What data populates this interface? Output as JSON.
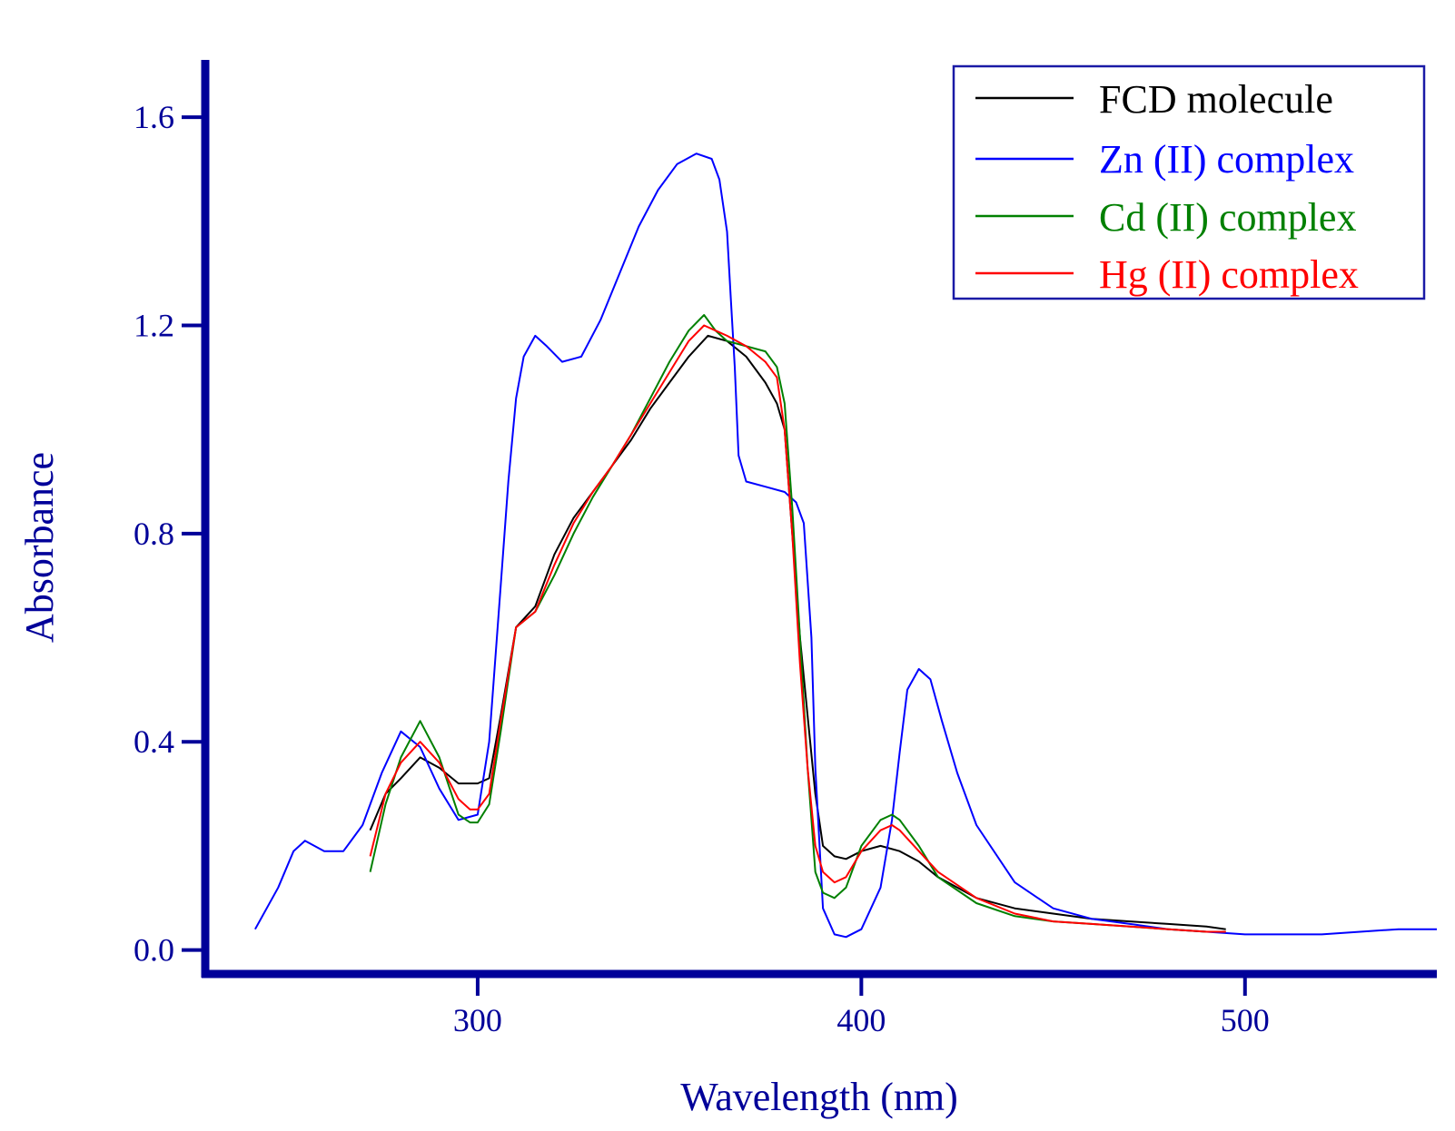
{
  "colors": {
    "axis": "#000099",
    "legend_border": "#1a1aa6"
  },
  "chart_data": {
    "type": "line",
    "title": "",
    "xlabel": "Wavelength (nm)",
    "ylabel": "Absorbance",
    "xlim": [
      229,
      550
    ],
    "ylim": [
      -0.046,
      1.71
    ],
    "xticks": [
      300,
      400,
      500
    ],
    "xtick_labels": [
      "300",
      "400",
      "500"
    ],
    "yticks": [
      0.0,
      0.4,
      0.8,
      1.2,
      1.6
    ],
    "ytick_labels": [
      "0.0",
      "0.4",
      "0.8",
      "1.2",
      "1.6"
    ],
    "grid": false,
    "legend_position": "top-right",
    "series": [
      {
        "name": "FCD molecule",
        "color": "#000000",
        "x": [
          272,
          276,
          280,
          285,
          290,
          295,
          300,
          303,
          306,
          310,
          315,
          320,
          325,
          330,
          335,
          340,
          345,
          350,
          355,
          360,
          365,
          370,
          375,
          378,
          380,
          382,
          384,
          386,
          388,
          390,
          393,
          396,
          400,
          405,
          410,
          415,
          420,
          430,
          440,
          450,
          460,
          470,
          480,
          490,
          495
        ],
        "y": [
          0.23,
          0.3,
          0.33,
          0.37,
          0.35,
          0.32,
          0.32,
          0.33,
          0.45,
          0.62,
          0.66,
          0.76,
          0.83,
          0.88,
          0.93,
          0.98,
          1.04,
          1.09,
          1.14,
          1.18,
          1.17,
          1.14,
          1.09,
          1.05,
          1.0,
          0.8,
          0.6,
          0.45,
          0.3,
          0.2,
          0.18,
          0.175,
          0.19,
          0.2,
          0.19,
          0.17,
          0.14,
          0.1,
          0.08,
          0.07,
          0.06,
          0.055,
          0.05,
          0.045,
          0.04
        ]
      },
      {
        "name": "Zn (II) complex",
        "color": "#0000ff",
        "x": [
          242,
          248,
          252,
          255,
          260,
          265,
          270,
          275,
          280,
          285,
          290,
          295,
          300,
          303,
          306,
          308,
          310,
          312,
          315,
          318,
          322,
          327,
          332,
          337,
          342,
          347,
          352,
          357,
          361,
          363,
          365,
          366,
          367,
          368,
          370,
          375,
          380,
          383,
          385,
          387,
          388,
          390,
          393,
          396,
          400,
          405,
          408,
          410,
          412,
          415,
          418,
          421,
          425,
          430,
          440,
          450,
          460,
          470,
          480,
          490,
          500,
          510,
          520,
          530,
          540,
          550
        ],
        "y": [
          0.04,
          0.12,
          0.19,
          0.21,
          0.19,
          0.19,
          0.24,
          0.34,
          0.42,
          0.39,
          0.31,
          0.25,
          0.26,
          0.4,
          0.7,
          0.9,
          1.06,
          1.14,
          1.18,
          1.16,
          1.13,
          1.14,
          1.21,
          1.3,
          1.39,
          1.46,
          1.51,
          1.53,
          1.52,
          1.48,
          1.38,
          1.25,
          1.12,
          0.95,
          0.9,
          0.89,
          0.88,
          0.86,
          0.82,
          0.6,
          0.35,
          0.08,
          0.03,
          0.025,
          0.04,
          0.12,
          0.25,
          0.38,
          0.5,
          0.54,
          0.52,
          0.44,
          0.34,
          0.24,
          0.13,
          0.08,
          0.06,
          0.05,
          0.04,
          0.035,
          0.03,
          0.03,
          0.03,
          0.035,
          0.04,
          0.04
        ]
      },
      {
        "name": "Cd (II) complex",
        "color": "#008000",
        "x": [
          272,
          276,
          280,
          285,
          290,
          295,
          298,
          300,
          303,
          306,
          310,
          315,
          320,
          325,
          330,
          335,
          340,
          345,
          350,
          355,
          359,
          362,
          365,
          370,
          375,
          378,
          380,
          382,
          384,
          386,
          388,
          390,
          393,
          396,
          400,
          405,
          408,
          410,
          415,
          420,
          430,
          440,
          450,
          460,
          470,
          480,
          490,
          495
        ],
        "y": [
          0.15,
          0.28,
          0.37,
          0.44,
          0.37,
          0.26,
          0.245,
          0.245,
          0.28,
          0.42,
          0.62,
          0.65,
          0.72,
          0.8,
          0.87,
          0.93,
          0.99,
          1.06,
          1.13,
          1.19,
          1.22,
          1.19,
          1.17,
          1.16,
          1.15,
          1.12,
          1.05,
          0.85,
          0.6,
          0.35,
          0.15,
          0.11,
          0.1,
          0.12,
          0.2,
          0.25,
          0.26,
          0.25,
          0.2,
          0.14,
          0.09,
          0.065,
          0.055,
          0.05,
          0.045,
          0.04,
          0.035,
          0.035
        ]
      },
      {
        "name": "Hg (II) complex",
        "color": "#ff0000",
        "x": [
          272,
          276,
          280,
          285,
          290,
          295,
          298,
          300,
          303,
          306,
          310,
          315,
          320,
          325,
          330,
          335,
          340,
          345,
          350,
          355,
          359,
          362,
          365,
          370,
          375,
          378,
          380,
          382,
          384,
          386,
          388,
          390,
          393,
          396,
          400,
          405,
          408,
          410,
          415,
          420,
          430,
          440,
          450,
          460,
          470,
          480,
          490,
          495
        ],
        "y": [
          0.18,
          0.3,
          0.36,
          0.4,
          0.36,
          0.29,
          0.27,
          0.27,
          0.3,
          0.44,
          0.62,
          0.65,
          0.74,
          0.82,
          0.88,
          0.93,
          0.99,
          1.05,
          1.11,
          1.17,
          1.2,
          1.19,
          1.18,
          1.16,
          1.13,
          1.1,
          1.0,
          0.8,
          0.55,
          0.35,
          0.2,
          0.15,
          0.13,
          0.14,
          0.19,
          0.23,
          0.24,
          0.23,
          0.19,
          0.15,
          0.1,
          0.07,
          0.055,
          0.05,
          0.045,
          0.04,
          0.035,
          0.035
        ]
      }
    ]
  }
}
